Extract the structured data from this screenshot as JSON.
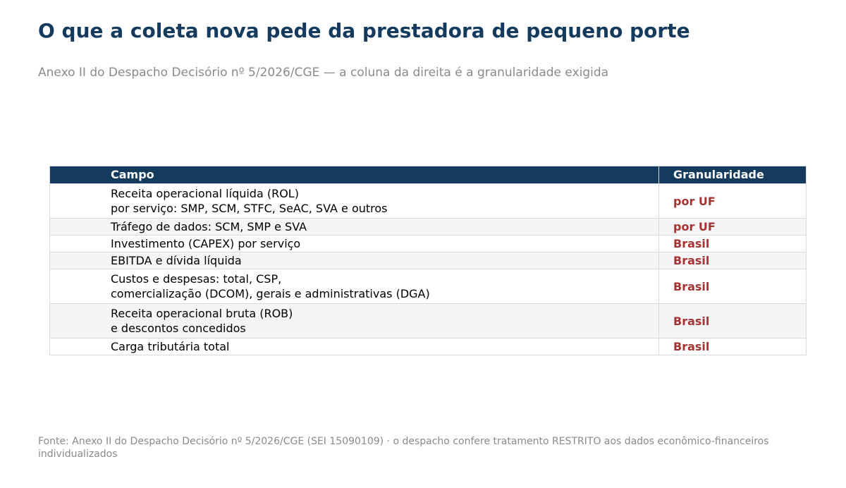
{
  "title": "O que a coleta nova pede da prestadora de pequeno porte",
  "subtitle": "Anexo II do Despacho Decisório nº 5/2026/CGE — a coluna da direita é a granularidade exigida",
  "table": {
    "headers": {
      "campo": "Campo",
      "granularidade": "Granularidade"
    },
    "rows": [
      {
        "campo": [
          "Receita operacional líquida (ROL)",
          "por serviço: SMP, SCM, STFC, SeAC, SVA e outros"
        ],
        "granularidade": "por UF"
      },
      {
        "campo": [
          "Tráfego de dados: SCM, SMP e SVA"
        ],
        "granularidade": "por UF"
      },
      {
        "campo": [
          "Investimento (CAPEX) por serviço"
        ],
        "granularidade": "Brasil"
      },
      {
        "campo": [
          "EBITDA e dívida líquida"
        ],
        "granularidade": "Brasil"
      },
      {
        "campo": [
          "Custos e despesas: total, CSP,",
          "comercialização (DCOM), gerais e administrativas (DGA)"
        ],
        "granularidade": "Brasil"
      },
      {
        "campo": [
          "Receita operacional bruta (ROB)",
          "e descontos concedidos"
        ],
        "granularidade": "Brasil"
      },
      {
        "campo": [
          "Carga tributária total"
        ],
        "granularidade": "Brasil"
      }
    ]
  },
  "footer": "Fonte: Anexo II do Despacho Decisório nº 5/2026/CGE (SEI 15090109) · o despacho confere tratamento RESTRITO aos dados econômico-financeiros individualizados",
  "colors": {
    "title": "#143a5e",
    "header_bg": "#143a5e",
    "granularity_text": "#a63232",
    "muted_text": "#8a8a8a",
    "alt_row_bg": "#f4f5f7"
  }
}
